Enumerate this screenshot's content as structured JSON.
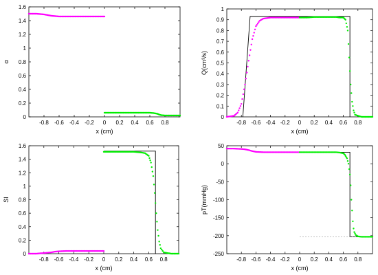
{
  "chart_data": [
    {
      "type": "scatter",
      "ylabel": "α",
      "xlabel": "x (cm)",
      "xlim": [
        -1,
        1
      ],
      "ylim": [
        0,
        1.6
      ],
      "xticks": [
        "-0.8",
        "-0.6",
        "-0.4",
        "-0.2",
        "0",
        "0.2",
        "0.4",
        "0.6",
        "0.8"
      ],
      "yticks": [
        "0",
        "0.2",
        "0.4",
        "0.6",
        "0.8",
        "1",
        "1.2",
        "1.4",
        "1.6"
      ],
      "series": [
        {
          "color": "#ff00ff",
          "x": [
            -1,
            -0.9,
            -0.8,
            -0.75,
            -0.7,
            -0.65,
            -0.6,
            -0.5,
            -0.4,
            -0.3,
            -0.2,
            -0.1,
            0
          ],
          "y": [
            1.5,
            1.5,
            1.49,
            1.48,
            1.47,
            1.465,
            1.46,
            1.46,
            1.46,
            1.46,
            1.46,
            1.46,
            1.46
          ]
        },
        {
          "color": "#00ee00",
          "x": [
            0,
            0.1,
            0.2,
            0.3,
            0.4,
            0.5,
            0.6,
            0.65,
            0.7,
            0.72,
            0.75,
            0.8,
            0.9,
            1.0
          ],
          "y": [
            0.06,
            0.06,
            0.06,
            0.06,
            0.06,
            0.06,
            0.06,
            0.055,
            0.045,
            0.035,
            0.025,
            0.02,
            0.02,
            0.02
          ]
        }
      ],
      "references": []
    },
    {
      "type": "scatter",
      "ylabel": "Q(cm³/s)",
      "xlabel": "x (cm)",
      "xlim": [
        -1,
        1
      ],
      "ylim": [
        0,
        1
      ],
      "xticks": [
        "-0.8",
        "-0.6",
        "-0.4",
        "-0.2",
        "0",
        "0.2",
        "0.4",
        "0.6",
        "0.8"
      ],
      "yticks": [
        "0",
        "0.1",
        "0.2",
        "0.3",
        "0.4",
        "0.5",
        "0.6",
        "0.7",
        "0.8",
        "0.9",
        "1"
      ],
      "series": [
        {
          "color": "#ff00ff",
          "x": [
            -1,
            -0.9,
            -0.85,
            -0.8,
            -0.75,
            -0.7,
            -0.65,
            -0.6,
            -0.55,
            -0.5,
            -0.45,
            -0.4,
            -0.3,
            -0.2,
            -0.1,
            0
          ],
          "y": [
            0.0,
            0.01,
            0.04,
            0.12,
            0.3,
            0.52,
            0.72,
            0.84,
            0.89,
            0.91,
            0.915,
            0.92,
            0.92,
            0.92,
            0.92,
            0.92
          ]
        },
        {
          "color": "#00ee00",
          "x": [
            0,
            0.1,
            0.2,
            0.3,
            0.4,
            0.5,
            0.55,
            0.6,
            0.63,
            0.66,
            0.68,
            0.7,
            0.72,
            0.74,
            0.76,
            0.8,
            0.85,
            0.9,
            1.0
          ],
          "y": [
            0.92,
            0.92,
            0.925,
            0.925,
            0.925,
            0.925,
            0.92,
            0.92,
            0.9,
            0.8,
            0.55,
            0.3,
            0.14,
            0.06,
            0.02,
            0.01,
            0.0,
            0.0,
            0.0
          ]
        }
      ],
      "references": [
        {
          "color": "#000000",
          "dash": false,
          "x": [
            -0.78,
            -0.68,
            0.69,
            0.69
          ],
          "y": [
            0,
            0.93,
            0.93,
            0
          ]
        }
      ]
    },
    {
      "type": "scatter",
      "ylabel": "SI",
      "xlabel": "x (cm)",
      "xlim": [
        -1,
        1
      ],
      "ylim": [
        0,
        1.6
      ],
      "xticks": [
        "-0.8",
        "-0.6",
        "-0.4",
        "-0.2",
        "0",
        "0.2",
        "0.4",
        "0.6",
        "0.8"
      ],
      "yticks": [
        "0",
        "0.2",
        "0.4",
        "0.6",
        "0.8",
        "1",
        "1.2",
        "1.4",
        "1.6"
      ],
      "series": [
        {
          "color": "#ff00ff",
          "x": [
            -1,
            -0.9,
            -0.8,
            -0.7,
            -0.65,
            -0.6,
            -0.5,
            -0.4,
            -0.3,
            -0.2,
            -0.1,
            0
          ],
          "y": [
            0.0,
            0.0,
            0.01,
            0.02,
            0.03,
            0.035,
            0.04,
            0.04,
            0.04,
            0.04,
            0.04,
            0.04
          ]
        },
        {
          "color": "#00ee00",
          "x": [
            0,
            0.1,
            0.2,
            0.3,
            0.4,
            0.5,
            0.55,
            0.6,
            0.63,
            0.66,
            0.68,
            0.7,
            0.72,
            0.74,
            0.76,
            0.8,
            0.9,
            1.0
          ],
          "y": [
            1.51,
            1.51,
            1.51,
            1.51,
            1.51,
            1.5,
            1.49,
            1.45,
            1.35,
            1.15,
            0.9,
            0.6,
            0.35,
            0.18,
            0.08,
            0.02,
            0.0,
            0.0
          ]
        }
      ],
      "references": [
        {
          "color": "#000000",
          "dash": false,
          "x": [
            0,
            0.69,
            0.69
          ],
          "y": [
            1.52,
            1.52,
            0
          ]
        }
      ]
    },
    {
      "type": "scatter",
      "ylabel": "pT(mmHg)",
      "xlabel": "x (cm)",
      "xlim": [
        -1,
        1
      ],
      "ylim": [
        -250,
        50
      ],
      "xticks": [
        "-0.8",
        "-0.6",
        "-0.4",
        "-0.2",
        "0",
        "0.2",
        "0.4",
        "0.6",
        "0.8"
      ],
      "yticks": [
        "-250",
        "-200",
        "-150",
        "-100",
        "-50",
        "0",
        "50"
      ],
      "series": [
        {
          "color": "#ff00ff",
          "x": [
            -1,
            -0.9,
            -0.8,
            -0.75,
            -0.7,
            -0.65,
            -0.6,
            -0.5,
            -0.4,
            -0.3,
            -0.2,
            -0.1,
            0
          ],
          "y": [
            42,
            42,
            41,
            40,
            38,
            35,
            33,
            32,
            32,
            32,
            32,
            32,
            32
          ]
        },
        {
          "color": "#00ee00",
          "x": [
            0,
            0.1,
            0.2,
            0.3,
            0.4,
            0.5,
            0.55,
            0.6,
            0.62,
            0.65,
            0.67,
            0.69,
            0.7,
            0.71,
            0.72,
            0.73,
            0.74,
            0.75,
            0.77,
            0.8,
            0.85,
            0.9,
            1.0
          ],
          "y": [
            32,
            32,
            32,
            32,
            32,
            32,
            31,
            29,
            25,
            15,
            0,
            -30,
            -60,
            -100,
            -130,
            -160,
            -180,
            -190,
            -198,
            -202,
            -203,
            -203,
            -203
          ]
        }
      ],
      "references": [
        {
          "color": "#000000",
          "dash": false,
          "x": [
            0,
            0.69,
            0.69,
            1.0
          ],
          "y": [
            32,
            32,
            -203,
            -203
          ]
        },
        {
          "color": "#999999",
          "dash": true,
          "x": [
            0,
            1.0
          ],
          "y": [
            -203,
            -203
          ]
        }
      ]
    }
  ]
}
